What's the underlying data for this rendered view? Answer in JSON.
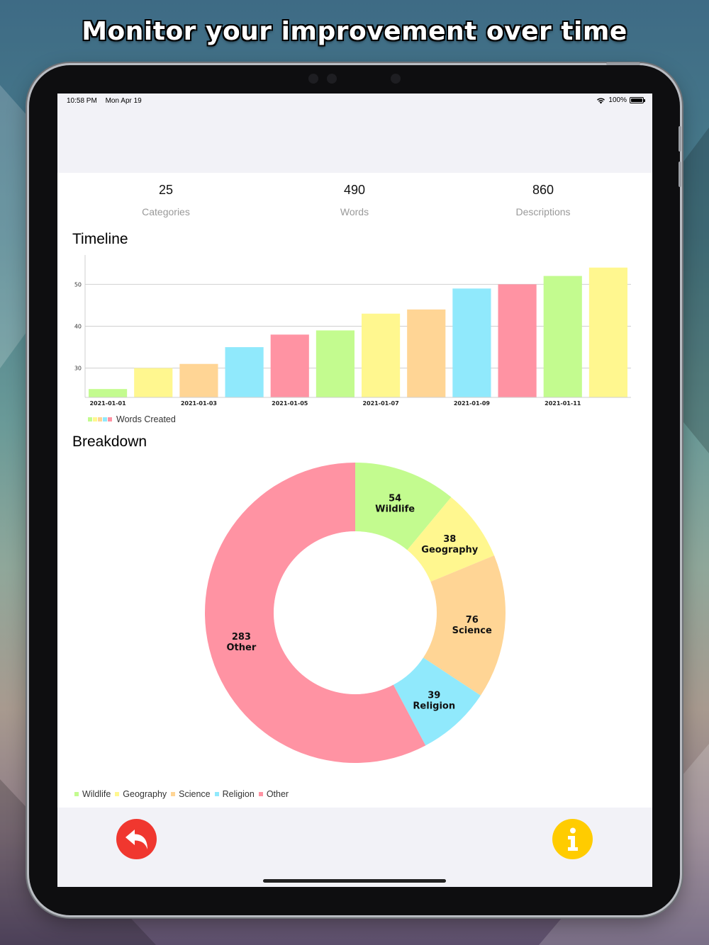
{
  "headline": "Monitor your improvement over time",
  "status_bar": {
    "time": "10:58 PM",
    "date": "Mon Apr 19",
    "battery": "100%",
    "battery_level": 1.0
  },
  "stats": [
    {
      "value": "25",
      "label": "Categories"
    },
    {
      "value": "490",
      "label": "Words"
    },
    {
      "value": "860",
      "label": "Descriptions"
    }
  ],
  "timeline_title": "Timeline",
  "breakdown_title": "Breakdown",
  "icons": {
    "back": "reply-arrow-icon",
    "info": "info-icon",
    "wifi": "wifi-icon",
    "battery": "battery-icon"
  },
  "colors": {
    "green": "#c3fb8f",
    "yellow": "#fff78f",
    "orange": "#ffd595",
    "blue": "#90e9fc",
    "pink": "#ff93a3",
    "back_button": "#f0372f",
    "info_button": "#ffcc00"
  },
  "chart_data": [
    {
      "type": "bar",
      "x": [
        "2021-01-01",
        "2021-01-02",
        "2021-01-03",
        "2021-01-04",
        "2021-01-05",
        "2021-01-06",
        "2021-01-07",
        "2021-01-08",
        "2021-01-09",
        "2021-01-10",
        "2021-01-11",
        "2021-01-12"
      ],
      "tick_labels": [
        "2021-01-01",
        "2021-01-03",
        "2021-01-05",
        "2021-01-07",
        "2021-01-09",
        "2021-01-11"
      ],
      "series": [
        {
          "name": "Words Created",
          "values": [
            25,
            30,
            31,
            35,
            38,
            39,
            43,
            44,
            49,
            50,
            52,
            54
          ]
        }
      ],
      "bar_colors": [
        "#c3fb8f",
        "#fff78f",
        "#ffd595",
        "#90e9fc",
        "#ff93a3"
      ],
      "ylim": [
        23,
        57
      ],
      "yticks": [
        30,
        40,
        50
      ],
      "grid": true,
      "legend": "bottom-left"
    },
    {
      "type": "pie",
      "donut": true,
      "slices": [
        {
          "label": "Wildlife",
          "value": 54,
          "color": "#c3fb8f"
        },
        {
          "label": "Geography",
          "value": 38,
          "color": "#fff78f"
        },
        {
          "label": "Science",
          "value": 76,
          "color": "#ffd595"
        },
        {
          "label": "Religion",
          "value": 39,
          "color": "#90e9fc"
        },
        {
          "label": "Other",
          "value": 283,
          "color": "#ff93a3"
        }
      ],
      "legend": "bottom-left"
    }
  ]
}
